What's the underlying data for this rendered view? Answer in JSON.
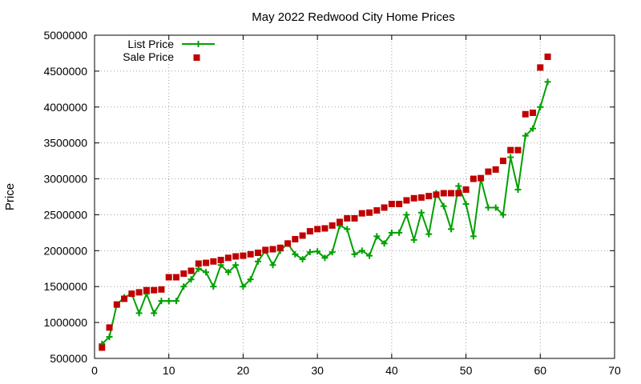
{
  "chart_data": {
    "type": "line",
    "title": "May 2022 Redwood City Home Prices",
    "xlabel": "",
    "ylabel": "Price",
    "xlim": [
      0,
      70
    ],
    "ylim": [
      500000,
      5000000
    ],
    "x_ticks": [
      0,
      10,
      20,
      30,
      40,
      50,
      60,
      70
    ],
    "y_ticks": [
      500000,
      1000000,
      1500000,
      2000000,
      2500000,
      3000000,
      3500000,
      4000000,
      4500000,
      5000000
    ],
    "grid": true,
    "legend_position": "top-left",
    "series": [
      {
        "name": "List Price",
        "style": "line+cross",
        "color": "#00a000",
        "x": [
          1,
          2,
          3,
          4,
          5,
          6,
          7,
          8,
          9,
          10,
          11,
          12,
          13,
          14,
          15,
          16,
          17,
          18,
          19,
          20,
          21,
          22,
          23,
          24,
          25,
          26,
          27,
          28,
          29,
          30,
          31,
          32,
          33,
          34,
          35,
          36,
          37,
          38,
          39,
          40,
          41,
          42,
          43,
          44,
          45,
          46,
          47,
          48,
          49,
          50,
          51,
          52,
          53,
          54,
          55,
          56,
          57,
          58,
          59,
          60,
          61
        ],
        "values": [
          700000,
          800000,
          1250000,
          1350000,
          1400000,
          1130000,
          1400000,
          1130000,
          1300000,
          1300000,
          1300000,
          1500000,
          1600000,
          1750000,
          1700000,
          1500000,
          1800000,
          1700000,
          1800000,
          1500000,
          1600000,
          1850000,
          2000000,
          1800000,
          2000000,
          2100000,
          1950000,
          1880000,
          1980000,
          1990000,
          1900000,
          1980000,
          2350000,
          2300000,
          1950000,
          2000000,
          1930000,
          2200000,
          2100000,
          2250000,
          2250000,
          2500000,
          2150000,
          2530000,
          2230000,
          2800000,
          2620000,
          2300000,
          2900000,
          2650000,
          2200000,
          3000000,
          2600000,
          2600000,
          2500000,
          3300000,
          2850000,
          3600000,
          3700000,
          4000000,
          4350000
        ]
      },
      {
        "name": "Sale Price",
        "style": "square-markers",
        "color": "#c00000",
        "x": [
          1,
          2,
          3,
          4,
          5,
          6,
          7,
          8,
          9,
          10,
          11,
          12,
          13,
          14,
          15,
          16,
          17,
          18,
          19,
          20,
          21,
          22,
          23,
          24,
          25,
          26,
          27,
          28,
          29,
          30,
          31,
          32,
          33,
          34,
          35,
          36,
          37,
          38,
          39,
          40,
          41,
          42,
          43,
          44,
          45,
          46,
          47,
          48,
          49,
          50,
          51,
          52,
          53,
          54,
          55,
          56,
          57,
          58,
          59,
          60,
          61
        ],
        "values": [
          650000,
          930000,
          1250000,
          1330000,
          1400000,
          1420000,
          1450000,
          1450000,
          1460000,
          1630000,
          1630000,
          1680000,
          1720000,
          1820000,
          1830000,
          1850000,
          1870000,
          1900000,
          1920000,
          1930000,
          1950000,
          1970000,
          2010000,
          2020000,
          2040000,
          2100000,
          2160000,
          2210000,
          2270000,
          2300000,
          2310000,
          2350000,
          2400000,
          2450000,
          2450000,
          2520000,
          2530000,
          2560000,
          2600000,
          2650000,
          2650000,
          2700000,
          2730000,
          2740000,
          2760000,
          2780000,
          2800000,
          2800000,
          2800000,
          2850000,
          3000000,
          3010000,
          3100000,
          3130000,
          3250000,
          3400000,
          3400000,
          3900000,
          3920000,
          4550000,
          4700000
        ]
      }
    ]
  }
}
